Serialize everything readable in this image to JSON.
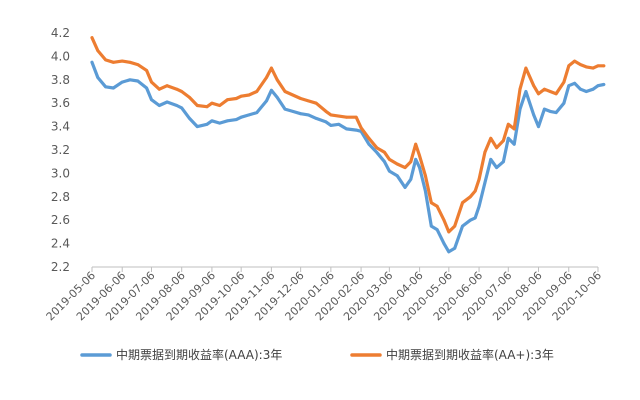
{
  "chart_data": {
    "type": "line",
    "title": "",
    "xlabel": "",
    "ylabel": "",
    "ylim": [
      2.2,
      4.2
    ],
    "y_ticks": [
      "2.2",
      "2.4",
      "2.6",
      "2.8",
      "3.0",
      "3.2",
      "3.4",
      "3.6",
      "3.8",
      "4.0",
      "4.2"
    ],
    "x_ticks": [
      "2019-05-06",
      "2019-06-06",
      "2019-07-06",
      "2019-08-06",
      "2019-09-06",
      "2019-10-06",
      "2019-11-06",
      "2019-12-06",
      "2020-01-06",
      "2020-02-06",
      "2020-03-06",
      "2020-04-06",
      "2020-05-06",
      "2020-06-06",
      "2020-07-06",
      "2020-08-06",
      "2020-09-06",
      "2020-10-06"
    ],
    "grid": false,
    "legend_position": "bottom",
    "series": [
      {
        "name": "中期票据到期收益率(AAA):3年",
        "color": "#5b9bd5",
        "points": [
          [
            "2019-05-06",
            3.95
          ],
          [
            "2019-05-12",
            3.82
          ],
          [
            "2019-05-20",
            3.74
          ],
          [
            "2019-05-28",
            3.73
          ],
          [
            "2019-06-06",
            3.78
          ],
          [
            "2019-06-14",
            3.8
          ],
          [
            "2019-06-22",
            3.79
          ],
          [
            "2019-07-01",
            3.73
          ],
          [
            "2019-07-06",
            3.63
          ],
          [
            "2019-07-14",
            3.58
          ],
          [
            "2019-07-22",
            3.61
          ],
          [
            "2019-08-01",
            3.58
          ],
          [
            "2019-08-06",
            3.56
          ],
          [
            "2019-08-14",
            3.47
          ],
          [
            "2019-08-22",
            3.4
          ],
          [
            "2019-09-01",
            3.42
          ],
          [
            "2019-09-06",
            3.45
          ],
          [
            "2019-09-14",
            3.43
          ],
          [
            "2019-09-22",
            3.45
          ],
          [
            "2019-10-01",
            3.46
          ],
          [
            "2019-10-06",
            3.48
          ],
          [
            "2019-10-14",
            3.5
          ],
          [
            "2019-10-22",
            3.52
          ],
          [
            "2019-11-01",
            3.62
          ],
          [
            "2019-11-06",
            3.71
          ],
          [
            "2019-11-12",
            3.65
          ],
          [
            "2019-11-20",
            3.55
          ],
          [
            "2019-11-28",
            3.53
          ],
          [
            "2019-12-06",
            3.51
          ],
          [
            "2019-12-14",
            3.5
          ],
          [
            "2019-12-22",
            3.47
          ],
          [
            "2020-01-01",
            3.44
          ],
          [
            "2020-01-06",
            3.41
          ],
          [
            "2020-01-14",
            3.42
          ],
          [
            "2020-01-22",
            3.38
          ],
          [
            "2020-02-01",
            3.37
          ],
          [
            "2020-02-06",
            3.36
          ],
          [
            "2020-02-14",
            3.25
          ],
          [
            "2020-02-22",
            3.18
          ],
          [
            "2020-03-01",
            3.1
          ],
          [
            "2020-03-06",
            3.02
          ],
          [
            "2020-03-14",
            2.98
          ],
          [
            "2020-03-22",
            2.88
          ],
          [
            "2020-03-28",
            2.95
          ],
          [
            "2020-04-02",
            3.12
          ],
          [
            "2020-04-06",
            3.05
          ],
          [
            "2020-04-12",
            2.85
          ],
          [
            "2020-04-18",
            2.55
          ],
          [
            "2020-04-24",
            2.52
          ],
          [
            "2020-05-01",
            2.4
          ],
          [
            "2020-05-06",
            2.33
          ],
          [
            "2020-05-12",
            2.36
          ],
          [
            "2020-05-20",
            2.55
          ],
          [
            "2020-05-28",
            2.6
          ],
          [
            "2020-06-02",
            2.62
          ],
          [
            "2020-06-06",
            2.72
          ],
          [
            "2020-06-12",
            2.92
          ],
          [
            "2020-06-18",
            3.12
          ],
          [
            "2020-06-24",
            3.05
          ],
          [
            "2020-07-01",
            3.1
          ],
          [
            "2020-07-06",
            3.3
          ],
          [
            "2020-07-12",
            3.25
          ],
          [
            "2020-07-18",
            3.55
          ],
          [
            "2020-07-24",
            3.7
          ],
          [
            "2020-08-01",
            3.5
          ],
          [
            "2020-08-06",
            3.4
          ],
          [
            "2020-08-12",
            3.55
          ],
          [
            "2020-08-18",
            3.53
          ],
          [
            "2020-08-24",
            3.52
          ],
          [
            "2020-09-01",
            3.6
          ],
          [
            "2020-09-06",
            3.75
          ],
          [
            "2020-09-12",
            3.77
          ],
          [
            "2020-09-18",
            3.72
          ],
          [
            "2020-09-24",
            3.7
          ],
          [
            "2020-10-01",
            3.72
          ],
          [
            "2020-10-06",
            3.75
          ],
          [
            "2020-10-12",
            3.76
          ]
        ]
      },
      {
        "name": "中期票据到期收益率(AA+):3年",
        "color": "#ed7d31",
        "points": [
          [
            "2019-05-06",
            4.16
          ],
          [
            "2019-05-12",
            4.05
          ],
          [
            "2019-05-20",
            3.97
          ],
          [
            "2019-05-28",
            3.95
          ],
          [
            "2019-06-06",
            3.96
          ],
          [
            "2019-06-14",
            3.95
          ],
          [
            "2019-06-22",
            3.93
          ],
          [
            "2019-07-01",
            3.88
          ],
          [
            "2019-07-06",
            3.78
          ],
          [
            "2019-07-14",
            3.72
          ],
          [
            "2019-07-22",
            3.75
          ],
          [
            "2019-08-01",
            3.72
          ],
          [
            "2019-08-06",
            3.7
          ],
          [
            "2019-08-14",
            3.65
          ],
          [
            "2019-08-22",
            3.58
          ],
          [
            "2019-09-01",
            3.57
          ],
          [
            "2019-09-06",
            3.6
          ],
          [
            "2019-09-14",
            3.58
          ],
          [
            "2019-09-22",
            3.63
          ],
          [
            "2019-10-01",
            3.64
          ],
          [
            "2019-10-06",
            3.66
          ],
          [
            "2019-10-14",
            3.67
          ],
          [
            "2019-10-22",
            3.7
          ],
          [
            "2019-11-01",
            3.82
          ],
          [
            "2019-11-06",
            3.9
          ],
          [
            "2019-11-12",
            3.8
          ],
          [
            "2019-11-20",
            3.7
          ],
          [
            "2019-11-28",
            3.67
          ],
          [
            "2019-12-06",
            3.64
          ],
          [
            "2019-12-14",
            3.62
          ],
          [
            "2019-12-22",
            3.6
          ],
          [
            "2020-01-01",
            3.53
          ],
          [
            "2020-01-06",
            3.5
          ],
          [
            "2020-01-14",
            3.49
          ],
          [
            "2020-01-22",
            3.48
          ],
          [
            "2020-02-01",
            3.48
          ],
          [
            "2020-02-06",
            3.39
          ],
          [
            "2020-02-14",
            3.3
          ],
          [
            "2020-02-22",
            3.22
          ],
          [
            "2020-03-01",
            3.18
          ],
          [
            "2020-03-06",
            3.12
          ],
          [
            "2020-03-14",
            3.08
          ],
          [
            "2020-03-22",
            3.05
          ],
          [
            "2020-03-28",
            3.1
          ],
          [
            "2020-04-02",
            3.25
          ],
          [
            "2020-04-06",
            3.15
          ],
          [
            "2020-04-12",
            2.98
          ],
          [
            "2020-04-18",
            2.75
          ],
          [
            "2020-04-24",
            2.72
          ],
          [
            "2020-05-01",
            2.6
          ],
          [
            "2020-05-06",
            2.5
          ],
          [
            "2020-05-12",
            2.55
          ],
          [
            "2020-05-20",
            2.75
          ],
          [
            "2020-05-28",
            2.8
          ],
          [
            "2020-06-02",
            2.85
          ],
          [
            "2020-06-06",
            2.95
          ],
          [
            "2020-06-12",
            3.18
          ],
          [
            "2020-06-18",
            3.3
          ],
          [
            "2020-06-24",
            3.22
          ],
          [
            "2020-07-01",
            3.28
          ],
          [
            "2020-07-06",
            3.42
          ],
          [
            "2020-07-12",
            3.38
          ],
          [
            "2020-07-18",
            3.72
          ],
          [
            "2020-07-24",
            3.9
          ],
          [
            "2020-08-01",
            3.75
          ],
          [
            "2020-08-06",
            3.68
          ],
          [
            "2020-08-12",
            3.72
          ],
          [
            "2020-08-18",
            3.7
          ],
          [
            "2020-08-24",
            3.68
          ],
          [
            "2020-09-01",
            3.78
          ],
          [
            "2020-09-06",
            3.92
          ],
          [
            "2020-09-12",
            3.96
          ],
          [
            "2020-09-18",
            3.93
          ],
          [
            "2020-09-24",
            3.91
          ],
          [
            "2020-10-01",
            3.9
          ],
          [
            "2020-10-06",
            3.92
          ],
          [
            "2020-10-12",
            3.92
          ]
        ]
      }
    ]
  }
}
